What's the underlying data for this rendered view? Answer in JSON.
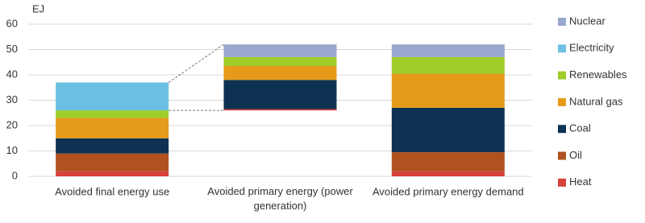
{
  "chart_data": {
    "type": "stacked-bar",
    "y_label": "EJ",
    "categories": [
      "Avoided final energy use",
      "Avoided primary energy (power generation)",
      "Avoided primary energy demand"
    ],
    "bases": [
      0,
      26,
      0
    ],
    "series": [
      {
        "name": "Heat",
        "color": "#d9403a",
        "values": [
          2,
          0.5,
          2
        ]
      },
      {
        "name": "Oil",
        "color": "#b0521f",
        "values": [
          7,
          0,
          7.5
        ]
      },
      {
        "name": "Coal",
        "color": "#0e3252",
        "values": [
          6,
          11.5,
          17.5
        ]
      },
      {
        "name": "Natural gas",
        "color": "#e59a1a",
        "values": [
          8,
          5.5,
          13.5
        ]
      },
      {
        "name": "Renewables",
        "color": "#9fcd2a",
        "values": [
          3,
          3.5,
          6.5
        ]
      },
      {
        "name": "Electricity",
        "color": "#6cbfe0",
        "values": [
          11,
          0,
          0
        ]
      },
      {
        "name": "Nuclear",
        "color": "#9aa8d0",
        "values": [
          0,
          5,
          5
        ]
      }
    ],
    "ylim": [
      0,
      60
    ],
    "yticks": [
      0,
      10,
      20,
      30,
      40,
      50,
      60
    ],
    "grid": true
  }
}
